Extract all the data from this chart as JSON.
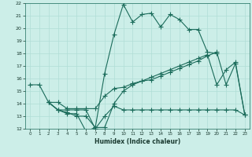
{
  "title": "",
  "xlabel": "Humidex (Indice chaleur)",
  "bg_color": "#cceee8",
  "line_color": "#1a6b5a",
  "grid_color": "#b0ddd6",
  "xlim": [
    -0.5,
    23.5
  ],
  "ylim": [
    12,
    22
  ],
  "xticks": [
    0,
    1,
    2,
    3,
    4,
    5,
    6,
    7,
    8,
    9,
    10,
    11,
    12,
    13,
    14,
    15,
    16,
    17,
    18,
    19,
    20,
    21,
    22,
    23
  ],
  "yticks": [
    12,
    13,
    14,
    15,
    16,
    17,
    18,
    19,
    20,
    21,
    22
  ],
  "line1_x": [
    0,
    1,
    2,
    3,
    4,
    5,
    6,
    7,
    8,
    9,
    10,
    11,
    12,
    13,
    14,
    15,
    16,
    17,
    18,
    19,
    20
  ],
  "line1_y": [
    15.5,
    15.5,
    14.1,
    13.5,
    13.2,
    13.2,
    11.8,
    12.1,
    16.4,
    19.5,
    21.9,
    20.5,
    21.1,
    21.2,
    20.1,
    21.1,
    20.7,
    19.9,
    19.9,
    18.1,
    18.0
  ],
  "line2_x": [
    2,
    3,
    4,
    5,
    6,
    7,
    8,
    9,
    10,
    11,
    12,
    13,
    14,
    15,
    16,
    17,
    18,
    19,
    20,
    21,
    22,
    23
  ],
  "line2_y": [
    14.1,
    14.1,
    13.6,
    13.6,
    13.6,
    13.6,
    14.6,
    15.2,
    15.3,
    15.6,
    15.8,
    15.9,
    16.2,
    16.5,
    16.8,
    17.1,
    17.4,
    17.8,
    18.1,
    15.5,
    17.2,
    13.1
  ],
  "line3_x": [
    2,
    3,
    4,
    5,
    6,
    7,
    8,
    9,
    10,
    11,
    12,
    13,
    14,
    15,
    16,
    17,
    18,
    19,
    20,
    21,
    22,
    23
  ],
  "line3_y": [
    14.1,
    13.5,
    13.5,
    13.5,
    13.5,
    12.0,
    13.0,
    13.8,
    13.5,
    13.5,
    13.5,
    13.5,
    13.5,
    13.5,
    13.5,
    13.5,
    13.5,
    13.5,
    13.5,
    13.5,
    13.5,
    13.1
  ],
  "line4_x": [
    2,
    3,
    4,
    5,
    6,
    7,
    8,
    9,
    10,
    11,
    12,
    13,
    14,
    15,
    16,
    17,
    18,
    19,
    20,
    21,
    22,
    23
  ],
  "line4_y": [
    14.1,
    13.5,
    13.3,
    13.0,
    13.0,
    12.1,
    12.1,
    14.0,
    15.0,
    15.5,
    15.8,
    16.1,
    16.4,
    16.7,
    17.0,
    17.3,
    17.6,
    17.9,
    15.5,
    16.7,
    17.3,
    13.1
  ]
}
